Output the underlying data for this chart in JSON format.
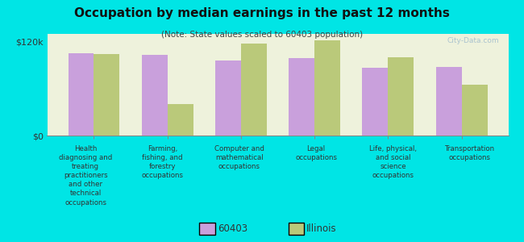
{
  "title": "Occupation by median earnings in the past 12 months",
  "subtitle": "(Note: State values scaled to 60403 population)",
  "background_color": "#00e5e5",
  "plot_bg_color": "#eef2dc",
  "categories": [
    "Health\ndiagnosing and\ntreating\npractitioners\nand other\ntechnical\noccupations",
    "Farming,\nfishing, and\nforestry\noccupations",
    "Computer and\nmathematical\noccupations",
    "Legal\noccupations",
    "Life, physical,\nand social\nscience\noccupations",
    "Transportation\noccupations"
  ],
  "values_60403": [
    105000,
    103000,
    96000,
    99000,
    87000,
    88000
  ],
  "values_illinois": [
    104000,
    40000,
    118000,
    122000,
    100000,
    65000
  ],
  "color_60403": "#c9a0dc",
  "color_illinois": "#bac97a",
  "ylim": [
    0,
    130000
  ],
  "yticks": [
    0,
    120000
  ],
  "ytick_labels": [
    "$0",
    "$120k"
  ],
  "legend_labels": [
    "60403",
    "Illinois"
  ],
  "bar_width": 0.35,
  "watermark": "City-Data.com"
}
